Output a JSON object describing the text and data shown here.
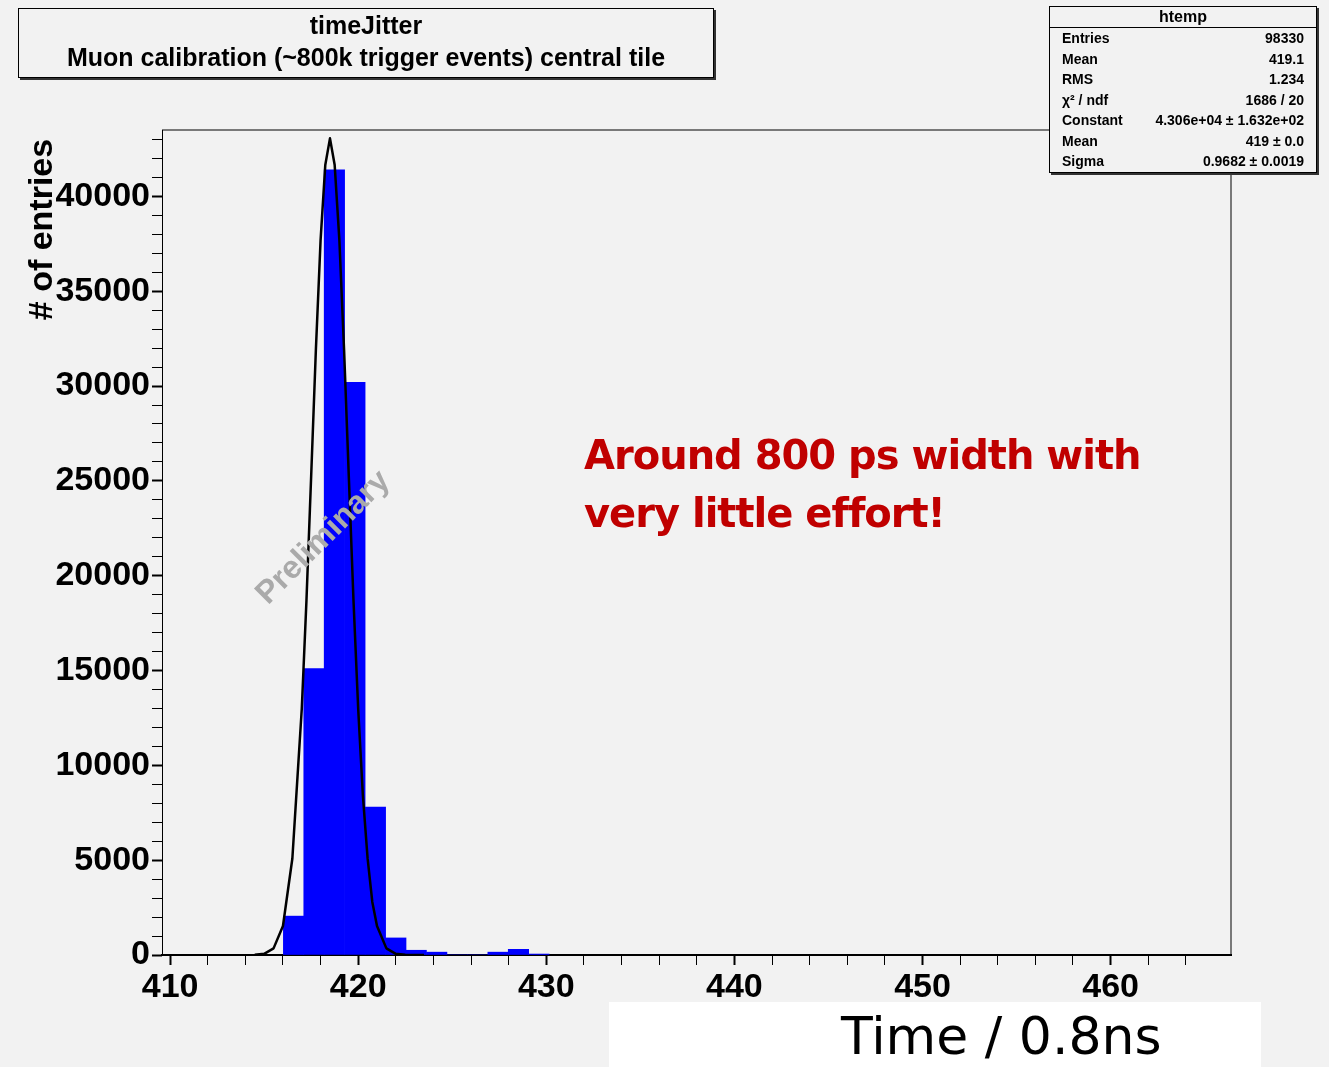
{
  "chart_data": {
    "type": "histogram",
    "title": "timeJitter",
    "subtitle": "Muon calibration (~800k trigger events) central tile",
    "xlabel": "Time / 0.8ns",
    "ylabel": "# of entries",
    "xlim": [
      409.57,
      466.4
    ],
    "xticks": [
      410,
      {
        "value": 412,
        "label": null
      },
      {
        "value": 414,
        "label": null
      },
      {
        "value": 416,
        "label": null
      },
      {
        "value": 418,
        "label": null
      },
      420,
      {
        "value": 422,
        "label": null
      },
      {
        "value": 424,
        "label": null
      },
      {
        "value": 426,
        "label": null
      },
      {
        "value": 428,
        "label": null
      },
      430,
      {
        "value": 432,
        "label": null
      },
      {
        "value": 434,
        "label": null
      },
      {
        "value": 436,
        "label": null
      },
      {
        "value": 438,
        "label": null
      },
      440,
      {
        "value": 442,
        "label": null
      },
      {
        "value": 444,
        "label": null
      },
      {
        "value": 446,
        "label": null
      },
      {
        "value": 448,
        "label": null
      },
      450,
      {
        "value": 452,
        "label": null
      },
      {
        "value": 454,
        "label": null
      },
      {
        "value": 456,
        "label": null
      },
      {
        "value": 458,
        "label": null
      },
      460,
      {
        "value": 462,
        "label": null
      },
      {
        "value": 464,
        "label": null
      }
    ],
    "ylim": [
      0,
      43500
    ],
    "yticks": [
      0,
      {
        "value": 1000,
        "label": null
      },
      {
        "value": 2000,
        "label": null
      },
      {
        "value": 3000,
        "label": null
      },
      {
        "value": 4000,
        "label": null
      },
      5000,
      {
        "value": 6000,
        "label": null
      },
      {
        "value": 7000,
        "label": null
      },
      {
        "value": 8000,
        "label": null
      },
      {
        "value": 9000,
        "label": null
      },
      10000,
      {
        "value": 11000,
        "label": null
      },
      {
        "value": 12000,
        "label": null
      },
      {
        "value": 13000,
        "label": null
      },
      {
        "value": 14000,
        "label": null
      },
      15000,
      {
        "value": 16000,
        "label": null
      },
      {
        "value": 17000,
        "label": null
      },
      {
        "value": 18000,
        "label": null
      },
      {
        "value": 19000,
        "label": null
      },
      20000,
      {
        "value": 21000,
        "label": null
      },
      {
        "value": 22000,
        "label": null
      },
      {
        "value": 23000,
        "label": null
      },
      {
        "value": 24000,
        "label": null
      },
      25000,
      {
        "value": 26000,
        "label": null
      },
      {
        "value": 27000,
        "label": null
      },
      {
        "value": 28000,
        "label": null
      },
      {
        "value": 29000,
        "label": null
      },
      30000,
      {
        "value": 31000,
        "label": null
      },
      {
        "value": 32000,
        "label": null
      },
      {
        "value": 33000,
        "label": null
      },
      {
        "value": 34000,
        "label": null
      },
      35000,
      {
        "value": 36000,
        "label": null
      },
      {
        "value": 37000,
        "label": null
      },
      {
        "value": 38000,
        "label": null
      },
      {
        "value": 39000,
        "label": null
      },
      40000,
      {
        "value": 41000,
        "label": null
      },
      {
        "value": 42000,
        "label": null
      },
      {
        "value": 43000,
        "label": null
      }
    ],
    "grid": false,
    "legend": false,
    "series": [
      {
        "type": "histogram",
        "color": "#0000ff",
        "bins": [
          416.02,
          417.11,
          418.19,
          419.28,
          420.37,
          421.46,
          422.54,
          423.63,
          424.72,
          425.8,
          426.89,
          427.98,
          429.06,
          430.15
        ],
        "values": [
          2050,
          15100,
          41400,
          30200,
          7800,
          900,
          250,
          150,
          0,
          0,
          150,
          300,
          50
        ]
      },
      {
        "type": "line",
        "color": "#000000",
        "x": [
          414.5,
          415.0,
          415.5,
          416.0,
          416.5,
          417.0,
          417.25,
          417.5,
          417.75,
          418.0,
          418.25,
          418.5,
          418.75,
          419.0,
          419.25,
          419.5,
          419.75,
          420.0,
          420.25,
          420.5,
          420.75,
          421.0,
          421.5,
          422.0,
          422.5,
          423.0,
          423.5
        ],
        "values": [
          10,
          60,
          350,
          1530,
          5090,
          12970,
          18700,
          25260,
          31900,
          37680,
          41650,
          43060,
          41650,
          37680,
          31900,
          25260,
          18700,
          12970,
          8400,
          5090,
          2800,
          1530,
          350,
          60,
          10,
          0,
          0
        ]
      }
    ],
    "annotations": [
      "Around 800 ps width with very little effort!",
      "Preliminary",
      "htemp",
      "Entries",
      "98330",
      "Mean",
      "419.1",
      "RMS",
      "1.234",
      "χ² / ndf",
      "1686 / 20",
      "Constant",
      "4.306e+04 ± 1.632e+02",
      "Mean",
      "419 ± 0.0",
      "Sigma",
      "0.9682 ± 0.0019"
    ]
  }
}
